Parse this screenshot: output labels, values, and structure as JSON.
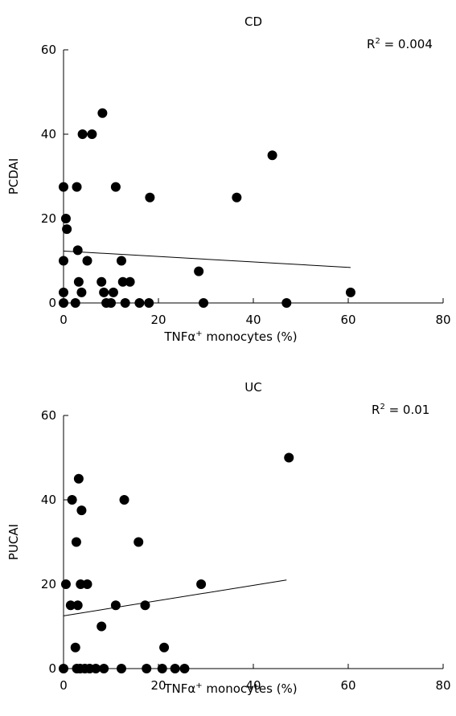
{
  "chart_data": [
    {
      "type": "scatter",
      "title": "CD",
      "xlabel": "TNFα",
      "xlabel_sup": "+",
      "xlabel_suffix": " monocytes (%)",
      "ylabel": "PCDAI",
      "annotation": {
        "prefix": "R",
        "sup": "2",
        "suffix": " = 0.004"
      },
      "xlim": [
        0,
        80
      ],
      "ylim": [
        0,
        60
      ],
      "xticks": [
        0,
        20,
        40,
        60,
        80
      ],
      "yticks": [
        0,
        20,
        40,
        60
      ],
      "grid": false,
      "trendline": {
        "x": [
          0,
          60.5
        ],
        "y": [
          12.3,
          8.4
        ]
      },
      "points": [
        [
          0,
          0
        ],
        [
          0,
          2.5
        ],
        [
          0,
          10
        ],
        [
          0,
          27.5
        ],
        [
          0.5,
          20
        ],
        [
          0.7,
          17.5
        ],
        [
          2.5,
          0
        ],
        [
          2.8,
          27.5
        ],
        [
          3.0,
          12.5
        ],
        [
          3.2,
          5
        ],
        [
          3.8,
          2.5
        ],
        [
          4.0,
          40
        ],
        [
          5.0,
          10
        ],
        [
          6.0,
          40
        ],
        [
          8.0,
          5
        ],
        [
          8.2,
          45
        ],
        [
          8.5,
          2.5
        ],
        [
          9.0,
          0
        ],
        [
          10.0,
          0
        ],
        [
          10.5,
          2.5
        ],
        [
          11.0,
          27.5
        ],
        [
          12.2,
          10
        ],
        [
          12.5,
          5
        ],
        [
          13.0,
          0
        ],
        [
          14.0,
          5
        ],
        [
          16.0,
          0
        ],
        [
          18.0,
          0
        ],
        [
          18.2,
          25
        ],
        [
          28.5,
          7.5
        ],
        [
          29.5,
          0
        ],
        [
          36.5,
          25
        ],
        [
          44.0,
          35
        ],
        [
          47.0,
          0
        ],
        [
          60.5,
          2.5
        ]
      ]
    },
    {
      "type": "scatter",
      "title": "UC",
      "xlabel": "TNFα",
      "xlabel_sup": "+",
      "xlabel_suffix": " monocytes (%)",
      "ylabel": "PUCAI",
      "annotation": {
        "prefix": "R",
        "sup": "2",
        "suffix": " = 0.01"
      },
      "xlim": [
        0,
        80
      ],
      "ylim": [
        0,
        60
      ],
      "xticks": [
        0,
        20,
        40,
        60,
        80
      ],
      "yticks": [
        0,
        20,
        40,
        60
      ],
      "grid": false,
      "trendline": {
        "x": [
          0,
          47
        ],
        "y": [
          12.5,
          21
        ]
      },
      "points": [
        [
          0,
          0
        ],
        [
          0.5,
          20
        ],
        [
          1.5,
          15
        ],
        [
          1.8,
          40
        ],
        [
          2.5,
          5
        ],
        [
          2.7,
          30
        ],
        [
          2.8,
          0
        ],
        [
          3.0,
          15
        ],
        [
          3.2,
          45
        ],
        [
          3.5,
          0
        ],
        [
          3.6,
          20
        ],
        [
          3.8,
          37.5
        ],
        [
          4.5,
          0
        ],
        [
          5.0,
          20
        ],
        [
          5.5,
          0
        ],
        [
          6.8,
          0
        ],
        [
          8.0,
          10
        ],
        [
          8.5,
          0
        ],
        [
          11.0,
          15
        ],
        [
          12.2,
          0
        ],
        [
          12.8,
          40
        ],
        [
          15.8,
          30
        ],
        [
          17.2,
          15
        ],
        [
          17.5,
          0
        ],
        [
          20.8,
          0
        ],
        [
          21.2,
          5
        ],
        [
          23.5,
          0
        ],
        [
          25.5,
          0
        ],
        [
          29.0,
          20
        ],
        [
          47.5,
          50
        ]
      ]
    }
  ]
}
